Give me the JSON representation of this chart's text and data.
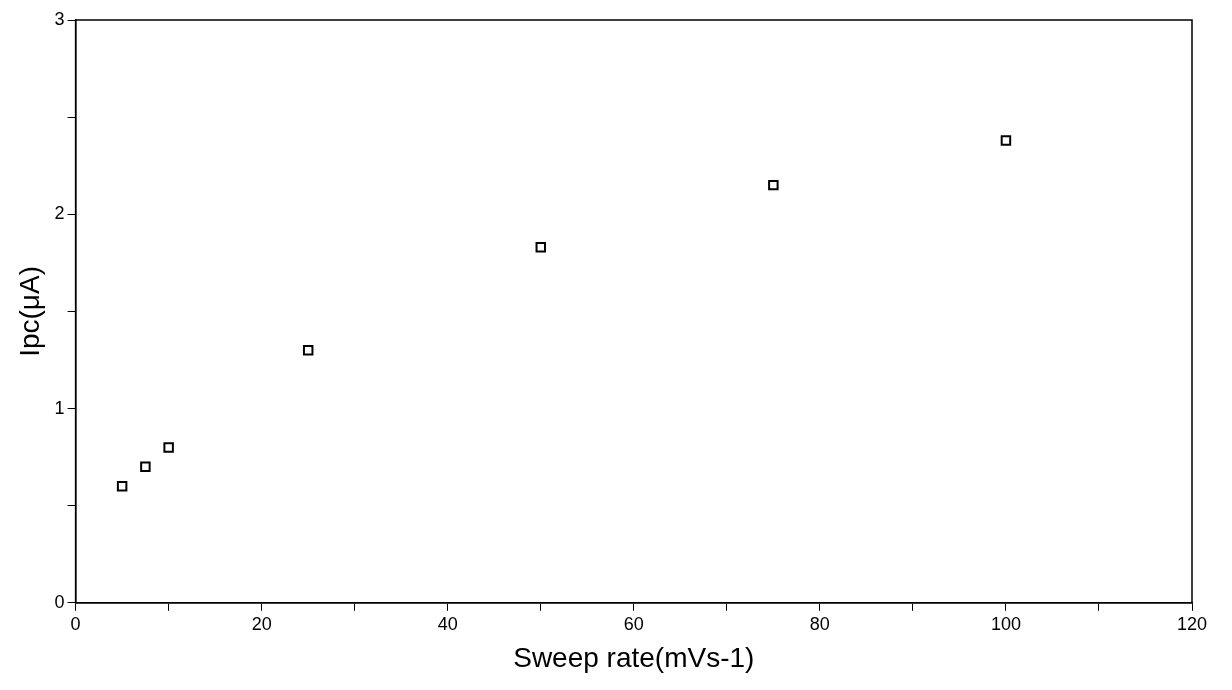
{
  "chart_data": {
    "type": "scatter",
    "xlabel": "Sweep rate(mVs-1)",
    "ylabel": "Ipc(μA)",
    "x": [
      5,
      7.5,
      10,
      25,
      50,
      75,
      100
    ],
    "series": [
      {
        "color": "#000000",
        "values": [
          0.6,
          0.7,
          0.8,
          1.3,
          1.83,
          2.15,
          2.38
        ]
      }
    ],
    "xlim": [
      0,
      120
    ],
    "ylim": [
      0,
      3
    ],
    "xticks": [
      0,
      {
        "value": 10,
        "label": null
      },
      20,
      {
        "value": 30,
        "label": null
      },
      40,
      {
        "value": 50,
        "label": null
      },
      60,
      {
        "value": 70,
        "label": null
      },
      80,
      {
        "value": 90,
        "label": null
      },
      100,
      {
        "value": 110,
        "label": null
      },
      120
    ],
    "yticks": [
      0,
      {
        "value": 0.5,
        "label": null
      },
      1,
      {
        "value": 1.5,
        "label": null
      },
      2,
      {
        "value": 2.5,
        "label": null
      },
      3
    ],
    "grid": false,
    "legend": false,
    "marker": "square"
  }
}
